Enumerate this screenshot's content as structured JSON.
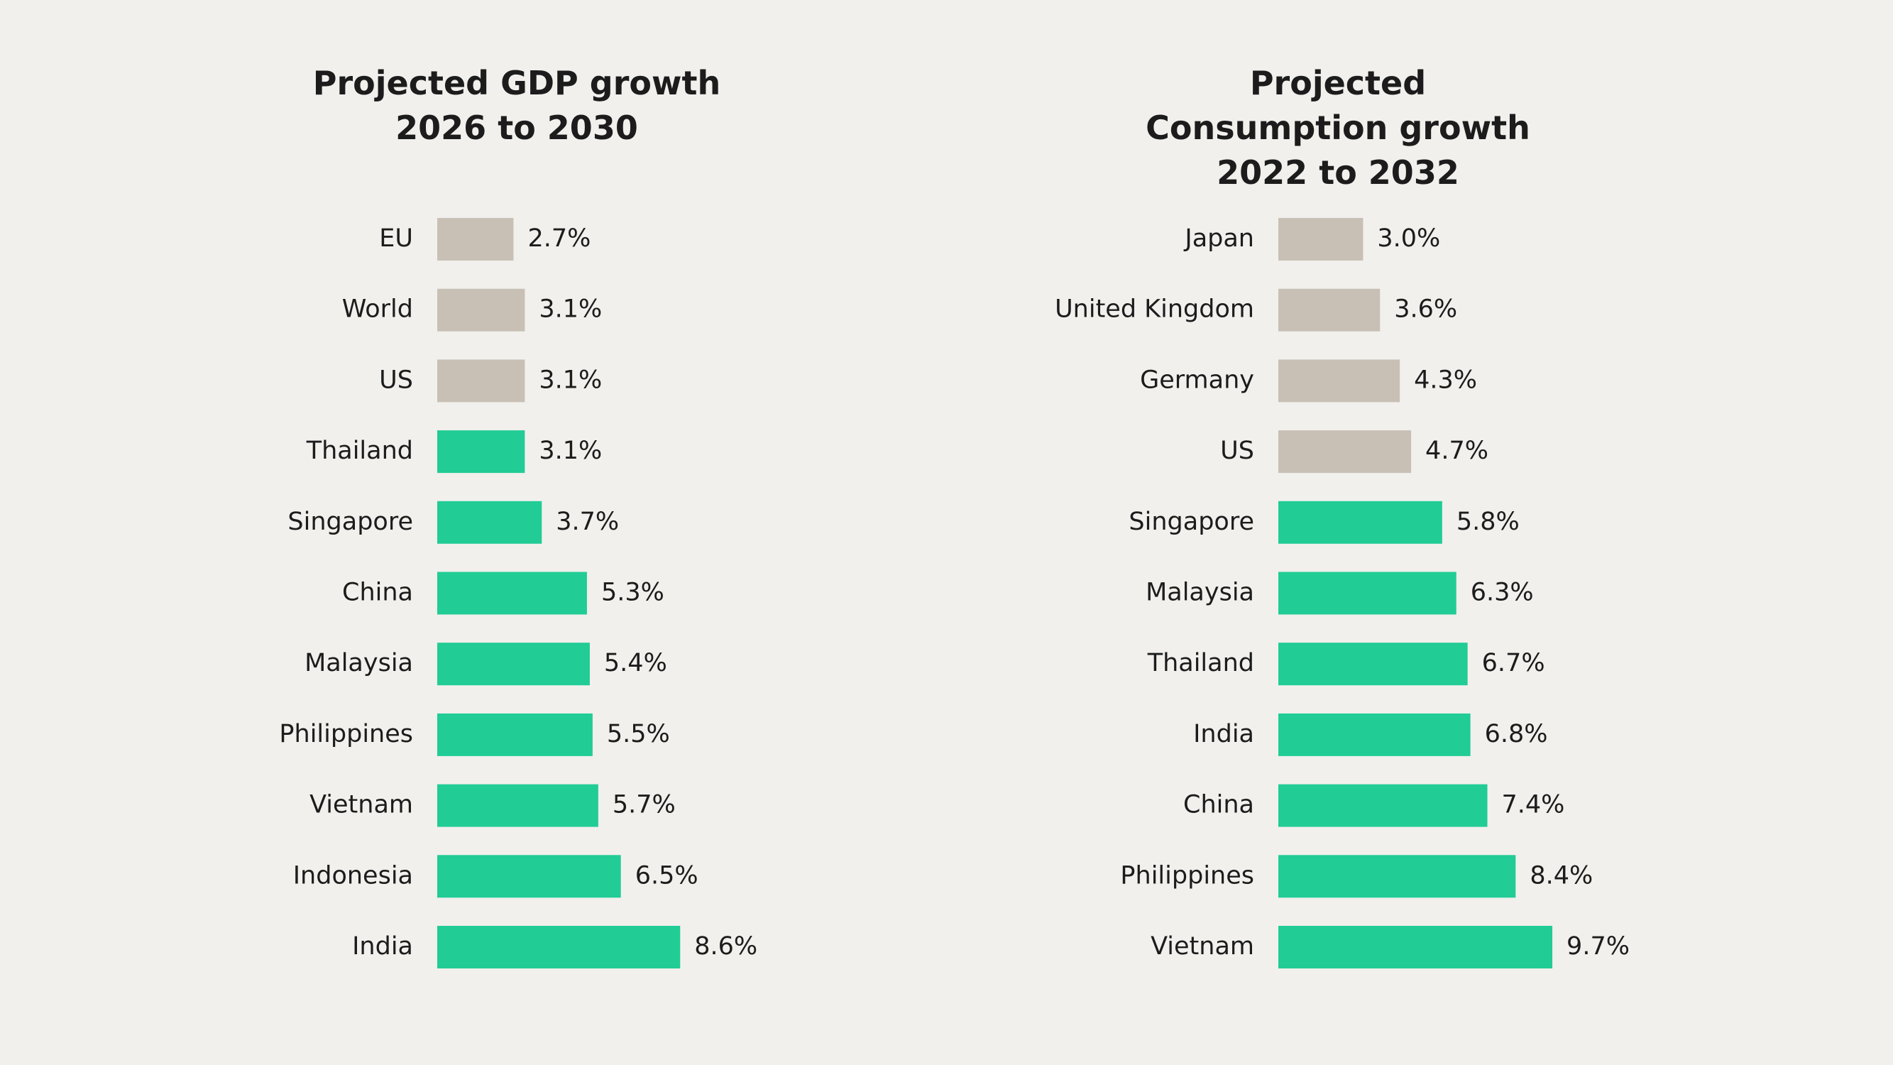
{
  "chart_data": [
    {
      "type": "barh",
      "title": "Projected GDP growth 2026 to 2030",
      "categories": [
        "EU",
        "World",
        "US",
        "Thailand",
        "Singapore",
        "China",
        "Malaysia",
        "Philippines",
        "Vietnam",
        "Indonesia",
        "India"
      ],
      "values": [
        2.7,
        3.1,
        3.1,
        3.1,
        3.7,
        5.3,
        5.4,
        5.5,
        5.7,
        6.5,
        8.6
      ],
      "value_labels": [
        "2.7%",
        "3.1%",
        "3.1%",
        "3.1%",
        "3.7%",
        "5.3%",
        "5.4%",
        "5.5%",
        "5.7%",
        "6.5%",
        "8.6%"
      ],
      "colors": [
        "#c9c0b5",
        "#c9c0b5",
        "#c9c0b5",
        "#21cc95",
        "#21cc95",
        "#21cc95",
        "#21cc95",
        "#21cc95",
        "#21cc95",
        "#21cc95",
        "#21cc95"
      ]
    },
    {
      "type": "barh",
      "title": "Projected Consumption growth 2022 to 2032",
      "categories": [
        "Japan",
        "United Kingdom",
        "Germany",
        "US",
        "Singapore",
        "Malaysia",
        "Thailand",
        "India",
        "China",
        "Philippines",
        "Vietnam"
      ],
      "values": [
        3.0,
        3.6,
        4.3,
        4.7,
        5.8,
        6.3,
        6.7,
        6.8,
        7.4,
        8.4,
        9.7
      ],
      "value_labels": [
        "3.0%",
        "3.6%",
        "4.3%",
        "4.7%",
        "5.8%",
        "6.3%",
        "6.7%",
        "6.8%",
        "7.4%",
        "8.4%",
        "9.7%"
      ],
      "colors": [
        "#c9c0b5",
        "#c9c0b5",
        "#c9c0b5",
        "#c9c0b5",
        "#21cc95",
        "#21cc95",
        "#21cc95",
        "#21cc95",
        "#21cc95",
        "#21cc95",
        "#21cc95"
      ]
    }
  ]
}
